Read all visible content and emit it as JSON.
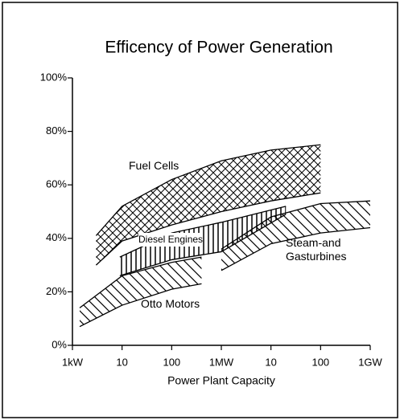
{
  "chart_data": {
    "type": "band",
    "title": "Efficency of Power Generation",
    "x_label": "Power Plant Capacity",
    "xscale": "log",
    "xlim": [
      1,
      1000000
    ],
    "xticks": [
      {
        "value": 1,
        "label": "1kW"
      },
      10,
      100,
      {
        "value": 1000,
        "label": "1MW"
      },
      {
        "value": 10000,
        "label": "10"
      },
      {
        "value": 100000,
        "label": "100"
      },
      {
        "value": 1000000,
        "label": "1GW"
      }
    ],
    "ylim": [
      0,
      100
    ],
    "yticks": [
      {
        "value": 0,
        "label": "0%"
      },
      {
        "value": 20,
        "label": "20%"
      },
      {
        "value": 40,
        "label": "40%"
      },
      {
        "value": 60,
        "label": "60%"
      },
      {
        "value": 80,
        "label": "80%"
      },
      {
        "value": 100,
        "label": "100%"
      }
    ],
    "color": "#000000",
    "series": [
      {
        "name": "Fuel Cells",
        "pattern": "crosshatch",
        "x": [
          3,
          10,
          100,
          1000,
          10000,
          100000
        ],
        "low": [
          30,
          39,
          45,
          50,
          54,
          57
        ],
        "high": [
          41,
          52,
          62,
          69,
          73,
          75
        ]
      },
      {
        "name": "Diesel Engines",
        "pattern": "vertical",
        "x": [
          9,
          100,
          1000,
          20000
        ],
        "low": [
          26,
          32,
          35,
          49
        ],
        "high": [
          33,
          42,
          46,
          52
        ]
      },
      {
        "name": "Steam-and Gasturbines",
        "pattern": "diagonal",
        "x": [
          1000,
          10000,
          100000,
          1000000
        ],
        "low": [
          28,
          38,
          42,
          44
        ],
        "high": [
          36,
          48,
          53,
          54
        ]
      },
      {
        "name": "Otto Motors",
        "pattern": "diagonal",
        "x": [
          1.4,
          10,
          100,
          400
        ],
        "low": [
          7,
          15,
          21,
          23
        ],
        "high": [
          14,
          26,
          31,
          33
        ]
      }
    ]
  }
}
